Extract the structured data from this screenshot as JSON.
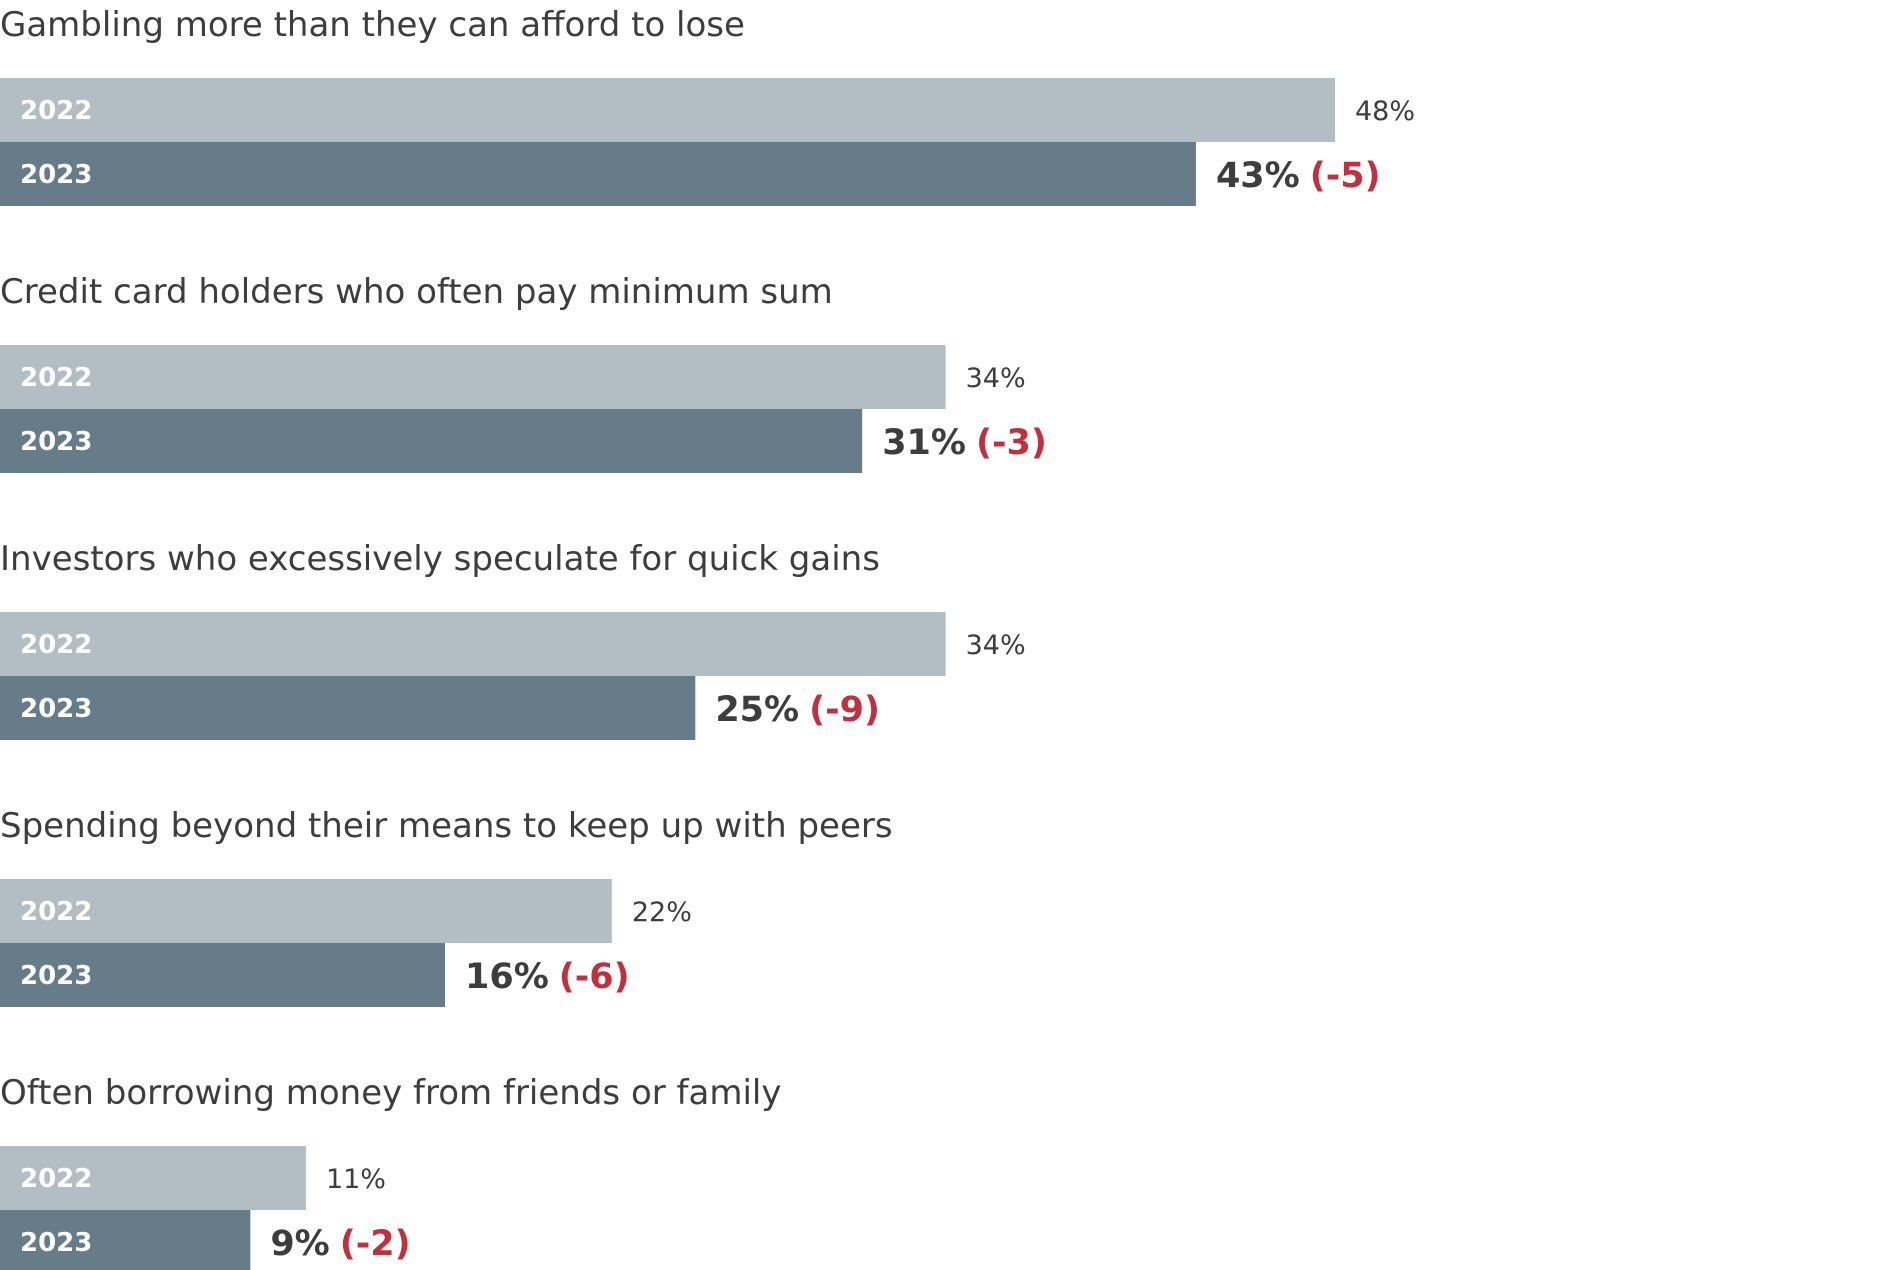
{
  "chart_data": {
    "type": "bar",
    "orientation": "horizontal",
    "title": "",
    "xlabel": "",
    "ylabel": "",
    "xlim": [
      0,
      100
    ],
    "unit": "%",
    "grid": false,
    "legend": "none",
    "series_names": [
      "2022",
      "2023"
    ],
    "categories": [
      "Gambling more than they can afford to lose",
      "Credit card holders who often pay minimum sum",
      "Investors who excessively speculate for quick gains",
      "Spending beyond their means to keep up with peers",
      "Often borrowing money from friends or family"
    ],
    "series": [
      {
        "name": "2022",
        "values": [
          48,
          34,
          34,
          22,
          11
        ]
      },
      {
        "name": "2023",
        "values": [
          43,
          31,
          25,
          16,
          9
        ]
      }
    ],
    "labels_2022": [
      "48%",
      "34%",
      "34%",
      "22%",
      "11%"
    ],
    "labels_2023": [
      "43%",
      "31%",
      "25%",
      "16%",
      "9%"
    ],
    "change_labels": [
      "(-5)",
      "(-3)",
      "(-9)",
      "(-6)",
      "(-2)"
    ]
  },
  "colors": {
    "bar_2022": "#b3bec4",
    "bar_2023": "#667c88",
    "change": "#c0303f",
    "text": "#3d3d3d"
  }
}
